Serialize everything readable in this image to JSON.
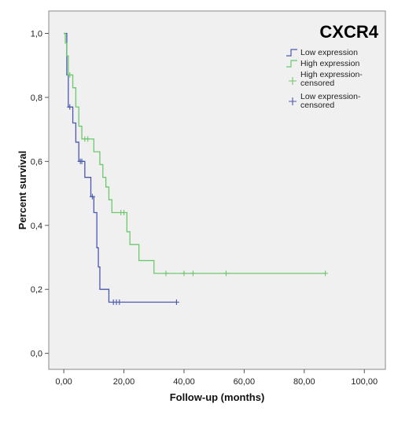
{
  "chart_data": {
    "type": "line",
    "title": "CXCR4",
    "xlabel": "Follow-up (months)",
    "ylabel": "Percent survival",
    "xlim": [
      -5,
      107
    ],
    "ylim": [
      -0.05,
      1.07
    ],
    "x_ticks": [
      0,
      20,
      40,
      60,
      80,
      100
    ],
    "x_tick_labels": [
      "0,00",
      "20,00",
      "40,00",
      "60,00",
      "80,00",
      "100,00"
    ],
    "y_ticks": [
      0,
      0.2,
      0.4,
      0.6,
      0.8,
      1.0
    ],
    "y_tick_labels": [
      "0,0",
      "0,2",
      "0,4",
      "0,6",
      "0,8",
      "1,0"
    ],
    "grid": false,
    "legend_position": "top-right",
    "series": [
      {
        "name": "Low expression",
        "color": "#4a58b0",
        "steps": [
          [
            0,
            1.0
          ],
          [
            1,
            0.87
          ],
          [
            1.5,
            0.77
          ],
          [
            3,
            0.72
          ],
          [
            4,
            0.66
          ],
          [
            5,
            0.6
          ],
          [
            7,
            0.55
          ],
          [
            9,
            0.49
          ],
          [
            10,
            0.44
          ],
          [
            11,
            0.33
          ],
          [
            11.5,
            0.27
          ],
          [
            12,
            0.2
          ],
          [
            15,
            0.16
          ],
          [
            38,
            0.16
          ]
        ],
        "censored": [
          [
            2,
            0.77
          ],
          [
            5.5,
            0.6
          ],
          [
            6,
            0.6
          ],
          [
            9.5,
            0.49
          ],
          [
            16.5,
            0.16
          ],
          [
            17.5,
            0.16
          ],
          [
            18.5,
            0.16
          ],
          [
            37.5,
            0.16
          ]
        ]
      },
      {
        "name": "High expression",
        "color": "#6dc86d",
        "steps": [
          [
            0,
            1.0
          ],
          [
            0.5,
            0.97
          ],
          [
            1,
            0.93
          ],
          [
            1.5,
            0.87
          ],
          [
            3,
            0.83
          ],
          [
            4,
            0.77
          ],
          [
            5,
            0.71
          ],
          [
            6,
            0.67
          ],
          [
            10,
            0.63
          ],
          [
            12,
            0.59
          ],
          [
            13,
            0.55
          ],
          [
            14,
            0.52
          ],
          [
            15,
            0.48
          ],
          [
            16,
            0.44
          ],
          [
            21,
            0.38
          ],
          [
            22,
            0.34
          ],
          [
            25,
            0.29
          ],
          [
            30,
            0.25
          ],
          [
            87,
            0.25
          ]
        ],
        "censored": [
          [
            2,
            0.87
          ],
          [
            7,
            0.67
          ],
          [
            8,
            0.67
          ],
          [
            19,
            0.44
          ],
          [
            20,
            0.44
          ],
          [
            34,
            0.25
          ],
          [
            40,
            0.25
          ],
          [
            43,
            0.25
          ],
          [
            54,
            0.25
          ],
          [
            87,
            0.25
          ]
        ]
      },
      {
        "name": "High expression-censored",
        "color": "#6dc86d"
      },
      {
        "name": "Low expression-censored",
        "color": "#4a58b0"
      }
    ]
  }
}
